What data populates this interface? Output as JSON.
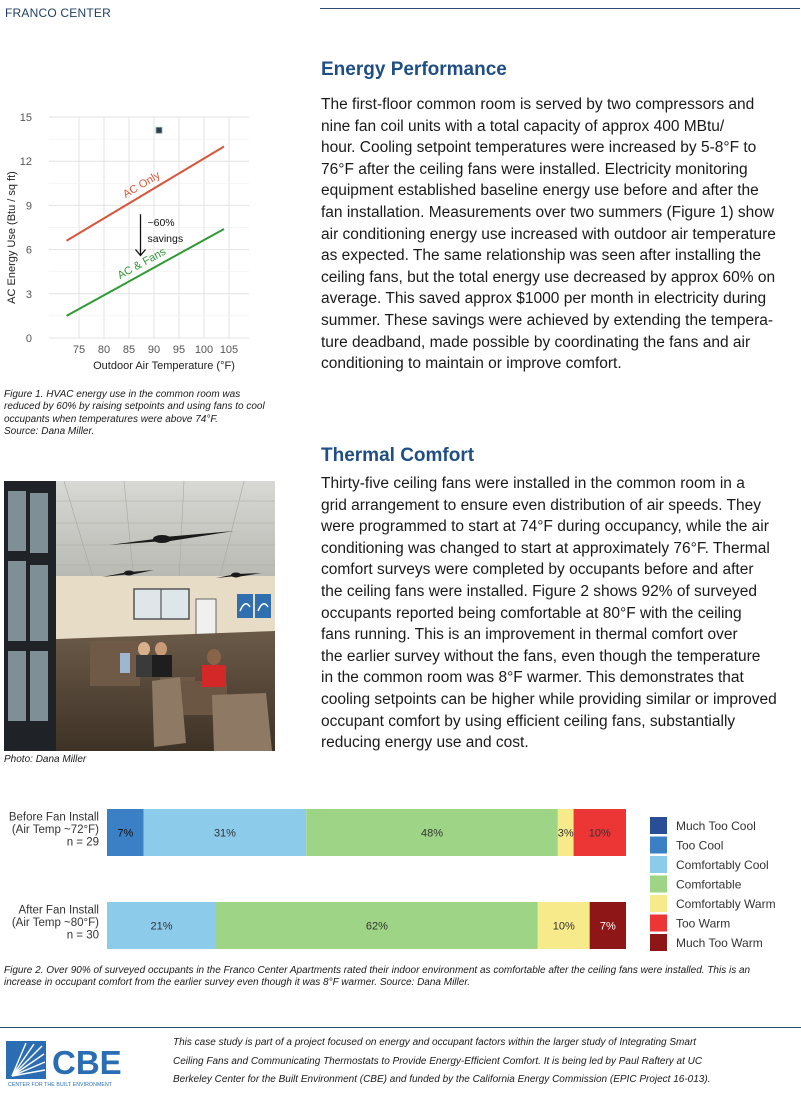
{
  "header": {
    "org_name": "FRANCO CENTER"
  },
  "energy": {
    "title": "Energy Performance",
    "lines": [
      "The first-floor common room is served by two compressors and",
      "nine fan coil units with a total capacity of approx 400 MBtu/",
      "hour. Cooling setpoint temperatures were increased by 5-8°F to",
      "76°F after the ceiling fans were installed. Electricity monitoring",
      "equipment established baseline energy use before and after the",
      "fan installation. Measurements over two summers (Figure 1) show",
      "air conditioning energy use increased with outdoor air temperature",
      "as expected. The same relationship was seen after installing the",
      "ceiling fans, but the total energy use decreased by approx 60% on",
      "average.  This saved approx $1000 per month in electricity during",
      "summer. These savings were achieved by extending the tempera-",
      "ture deadband, made possible by coordinating the fans and air",
      "conditioning to maintain or improve comfort."
    ]
  },
  "comfort": {
    "title": "Thermal Comfort",
    "lines": [
      "Thirty-five ceiling fans were installed in the common room in a",
      "grid arrangement to ensure even distribution of air speeds. They",
      "were programmed to start at 74°F during occupancy, while the air",
      "conditioning was changed to start at approximately 76°F. Thermal",
      "comfort surveys were completed by occupants before and after",
      "the ceiling fans were installed. Figure 2 shows 92% of surveyed",
      "occupants reported being comfortable at 80°F with the ceiling",
      "fans running. This is an improvement in thermal comfort over",
      "the earlier survey without the fans, even though the temperature",
      "in the common room was 8°F warmer. This demonstrates that",
      "cooling setpoints can be higher while providing similar or improved",
      "occupant comfort by using efficient ceiling fans, substantially",
      "reducing energy use and cost."
    ]
  },
  "figure1": {
    "caption_lines": [
      "Figure 1. HVAC energy use in the common room was",
      "reduced by 60% by raising setpoints and using fans to cool",
      "occupants when temperatures were above 74°F.",
      "Source: Dana Miller."
    ]
  },
  "photo": {
    "caption": "Photo: Dana Miller"
  },
  "figure2": {
    "caption_lines": [
      "Figure 2. Over 90% of surveyed occupants in the Franco Center Apartments rated their indoor environment as comfortable after the ceiling fans were installed. This is an",
      "increase in occupant comfort from the earlier survey even though it was 8°F warmer. Source: Dana Miller."
    ]
  },
  "footer": {
    "lines": [
      "This case study is part of a project focused on energy and occupant factors within the larger study of Integrating Smart",
      "Ceiling Fans and Communicating Thermostats to Provide Energy-Efficient Comfort. It is being led by Paul Raftery at UC",
      "Berkeley Center for the Built Environment (CBE) and funded by the California Energy Commission (EPIC Project 16-013)."
    ],
    "logo_text": "CBE",
    "logo_subtext": "CENTER FOR THE BUILT ENVIRONMENT"
  },
  "colors": {
    "heading": "#1f4e85",
    "ac_only": "#d9553a",
    "ac_fans": "#2e9a34",
    "much_too_cool": "#2a4e96",
    "too_cool": "#3b7fc4",
    "comfortably_cool": "#8ccbea",
    "comfortable": "#9ed486",
    "comfortably_warm": "#f7ea8a",
    "too_warm": "#ec3535",
    "much_too_warm": "#8f1616"
  },
  "chart_data": [
    {
      "type": "line",
      "xlabel": "Outdoor Air Temperature (°F)",
      "ylabel": "AC Energy Use (Btu / sq ft)",
      "xlim": [
        69,
        109
      ],
      "ylim": [
        0,
        15
      ],
      "x_ticks": [
        75,
        80,
        85,
        90,
        95,
        100,
        105
      ],
      "y_ticks": [
        0,
        3,
        6,
        9,
        12,
        15
      ],
      "grid": true,
      "series": [
        {
          "name": "AC Only",
          "x": [
            72.5,
            104
          ],
          "y": [
            6.6,
            13.0
          ]
        },
        {
          "name": "AC & Fans",
          "x": [
            72.5,
            104
          ],
          "y": [
            1.5,
            7.4
          ]
        }
      ],
      "points": [
        {
          "x": 91,
          "y": 14.1
        }
      ],
      "annotation": [
        "~60%",
        "savings"
      ]
    },
    {
      "type": "bar",
      "orientation": "horizontal",
      "stacked": true,
      "categories": [
        [
          "Before Fan Install",
          "(Air Temp ~72°F)",
          "n = 29"
        ],
        [
          "After Fan Install",
          "(Air Temp ~80°F)",
          "n = 30"
        ]
      ],
      "series": [
        {
          "name": "Much Too Cool",
          "values": [
            0,
            0
          ]
        },
        {
          "name": "Too Cool",
          "values": [
            7,
            0
          ]
        },
        {
          "name": "Comfortably Cool",
          "values": [
            31,
            21
          ]
        },
        {
          "name": "Comfortable",
          "values": [
            48,
            62
          ]
        },
        {
          "name": "Comfortably Warm",
          "values": [
            3,
            10
          ]
        },
        {
          "name": "Too Warm",
          "values": [
            10,
            0
          ]
        },
        {
          "name": "Much Too Warm",
          "values": [
            0,
            7
          ]
        }
      ],
      "legend": "right",
      "value_labels": [
        [
          "7%",
          "31%",
          "48%",
          "3%",
          "10%"
        ],
        [
          "21%",
          "62%",
          "10%",
          "7%"
        ]
      ]
    }
  ]
}
